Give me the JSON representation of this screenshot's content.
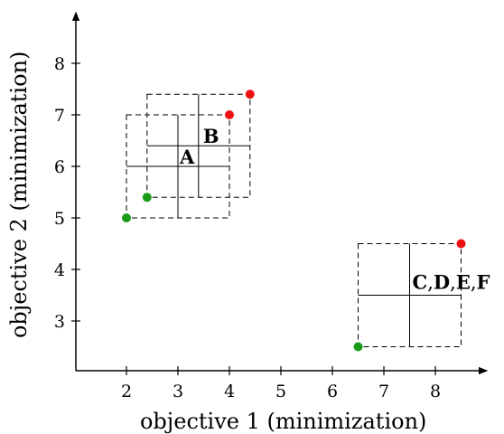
{
  "chart_data": {
    "type": "scatter",
    "xlabel": "objective 1 (minimization)",
    "ylabel": "objective 2 (minimization)",
    "xlim": [
      1,
      8.9
    ],
    "ylim": [
      2,
      8.9
    ],
    "xticks": [
      2,
      3,
      4,
      5,
      6,
      7,
      8
    ],
    "yticks": [
      3,
      4,
      5,
      6,
      7,
      8
    ],
    "grid": false,
    "boxes": [
      {
        "label": "A",
        "x_min": 2.0,
        "x_max": 4.0,
        "y_min": 5.0,
        "y_max": 7.0,
        "x_center": 3.0,
        "y_center": 6.0
      },
      {
        "label": "B",
        "x_min": 2.4,
        "x_max": 4.4,
        "y_min": 5.4,
        "y_max": 7.4,
        "x_center": 3.4,
        "y_center": 6.4
      },
      {
        "label": "",
        "x_min": 6.5,
        "x_max": 8.5,
        "y_min": 2.5,
        "y_max": 4.5,
        "x_center": 7.5,
        "y_center": 3.5
      }
    ],
    "label_parts": [
      {
        "text": "C",
        "bold": true
      },
      {
        "text": ",",
        "bold": false
      },
      {
        "text": "D",
        "bold": true
      },
      {
        "text": ",",
        "bold": false
      },
      {
        "text": "E",
        "bold": true
      },
      {
        "text": ",",
        "bold": false
      },
      {
        "text": "F",
        "bold": true
      }
    ],
    "series": [
      {
        "color": "#1a9a1a",
        "points": [
          [
            2.0,
            5.0
          ],
          [
            2.4,
            5.4
          ],
          [
            6.5,
            2.5
          ]
        ]
      },
      {
        "color": "#ee1111",
        "points": [
          [
            4.0,
            7.0
          ],
          [
            4.4,
            7.4
          ],
          [
            8.5,
            4.5
          ]
        ]
      }
    ]
  }
}
